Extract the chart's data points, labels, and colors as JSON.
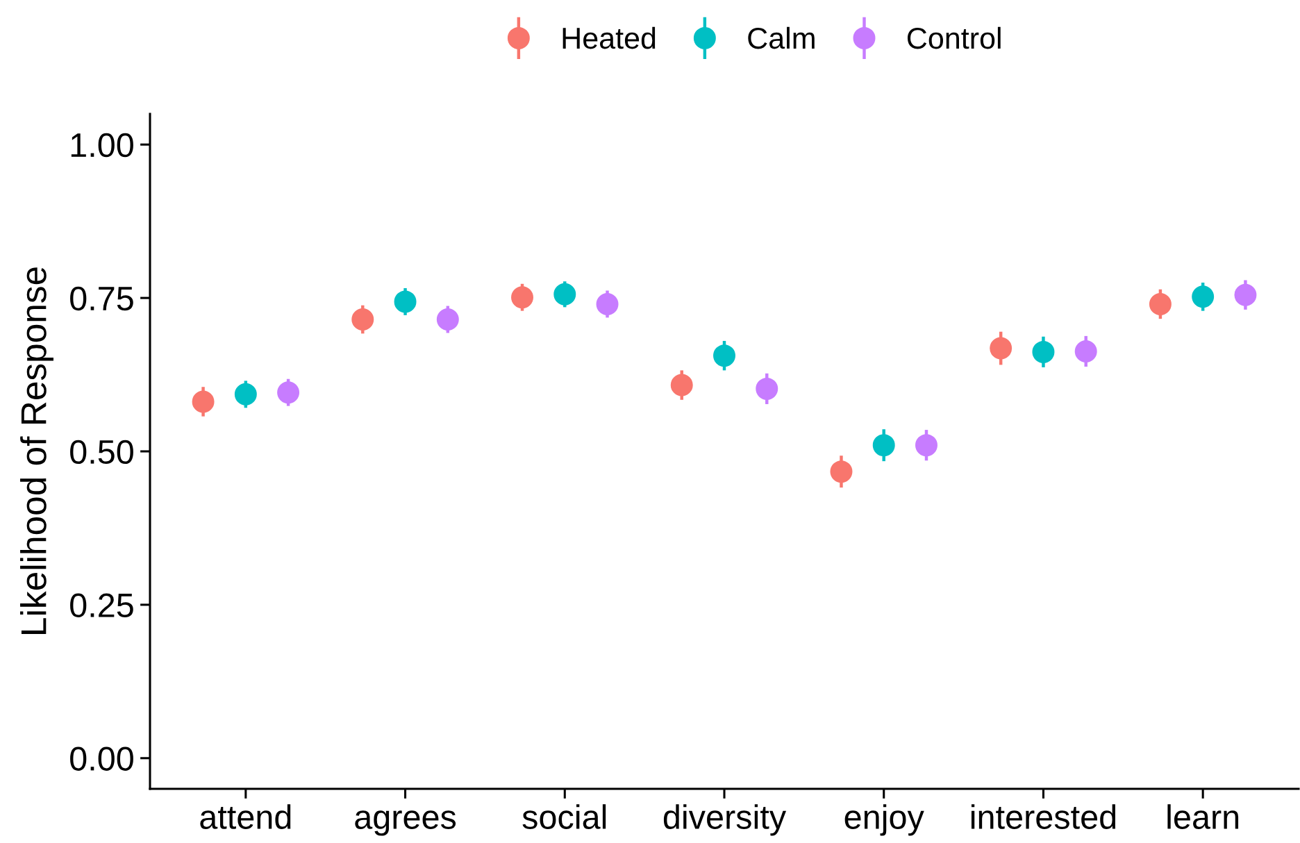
{
  "chart_data": {
    "type": "scatter",
    "ylabel": "Likelihood of Response",
    "categories": [
      "attend",
      "agrees",
      "social",
      "diversity",
      "enjoy",
      "interested",
      "learn"
    ],
    "series": [
      {
        "name": "Heated",
        "color": "#f8766d",
        "values": [
          0.581,
          0.715,
          0.751,
          0.608,
          0.467,
          0.668,
          0.74
        ],
        "errors": [
          0.024,
          0.023,
          0.022,
          0.024,
          0.026,
          0.027,
          0.024
        ]
      },
      {
        "name": "Calm",
        "color": "#00bfc4",
        "values": [
          0.593,
          0.744,
          0.756,
          0.656,
          0.51,
          0.662,
          0.752
        ],
        "errors": [
          0.022,
          0.022,
          0.021,
          0.024,
          0.026,
          0.025,
          0.023
        ]
      },
      {
        "name": "Control",
        "color": "#c77cff",
        "values": [
          0.596,
          0.715,
          0.74,
          0.602,
          0.51,
          0.663,
          0.755
        ],
        "errors": [
          0.022,
          0.022,
          0.022,
          0.025,
          0.025,
          0.025,
          0.024
        ]
      }
    ],
    "ylim": [
      -0.05,
      1.05
    ],
    "yticks": [
      {
        "value": 0,
        "label": "0.00"
      },
      {
        "value": 0.25,
        "label": "0.25"
      },
      {
        "value": 0.5,
        "label": "0.50"
      },
      {
        "value": 0.75,
        "label": "0.75"
      },
      {
        "value": 1,
        "label": "1.00"
      }
    ],
    "legend": "top",
    "marker": "circle"
  }
}
